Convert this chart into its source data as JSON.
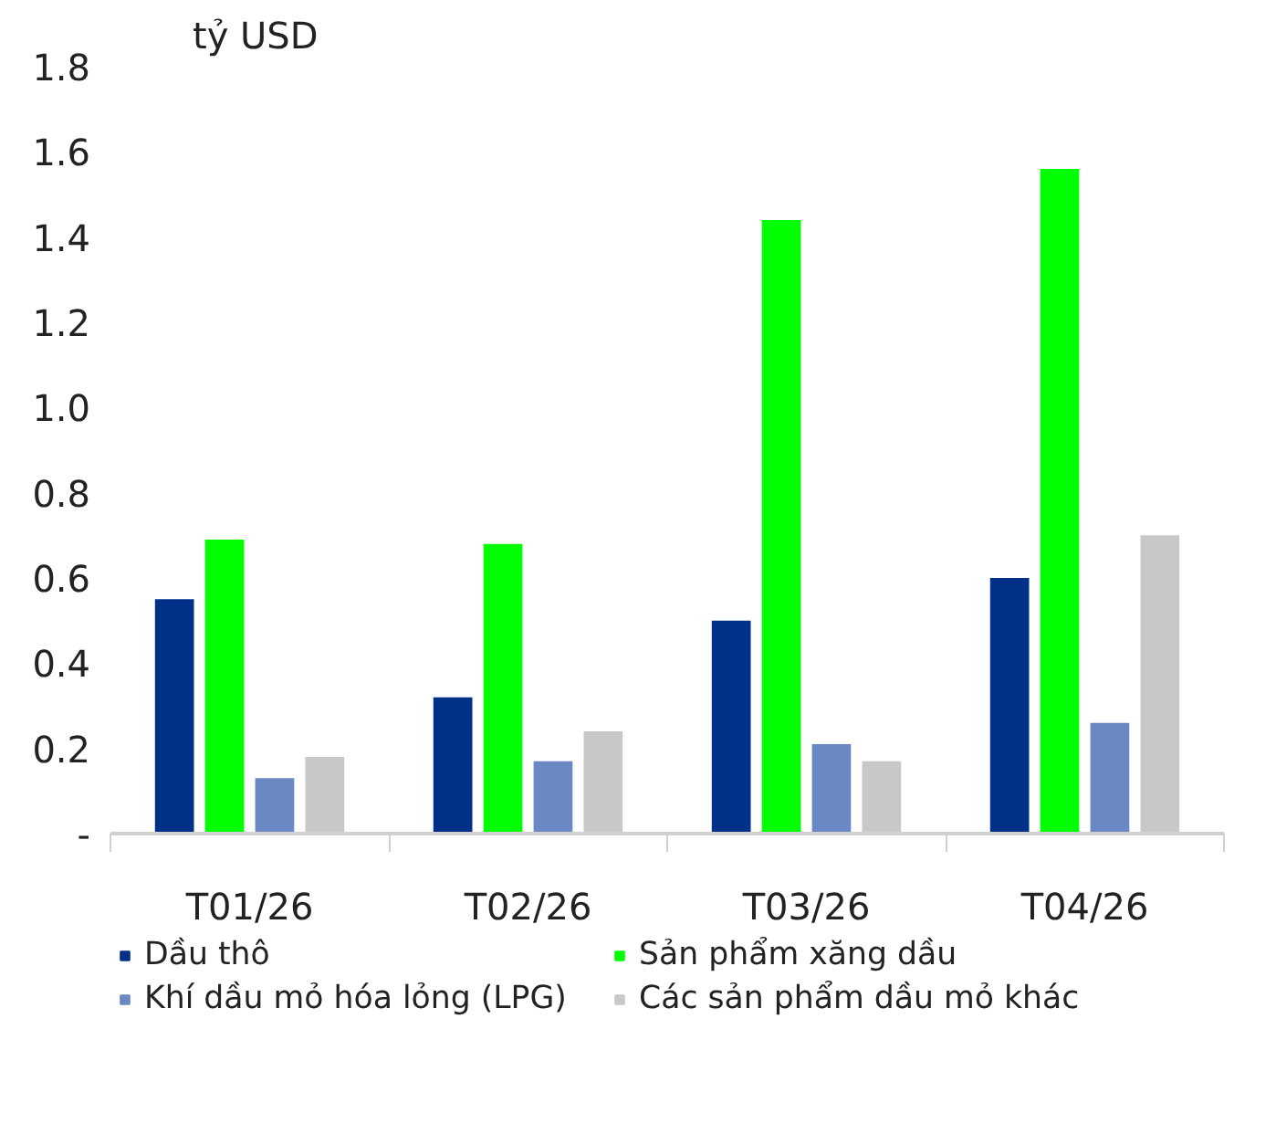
{
  "chart_data": {
    "type": "bar",
    "ylabel": "tỷ USD",
    "categories": [
      "T01/26",
      "T02/26",
      "T03/26",
      "T04/26"
    ],
    "series": [
      {
        "name": "Dầu thô",
        "color": "#003087",
        "values": [
          0.55,
          0.32,
          0.5,
          0.6
        ]
      },
      {
        "name": "Sản phẩm xăng dầu",
        "color": "#00ff00",
        "values": [
          0.69,
          0.68,
          1.44,
          1.56
        ]
      },
      {
        "name": "Khí dầu mỏ hóa lỏng (LPG)",
        "color": "#6a88c4",
        "values": [
          0.13,
          0.17,
          0.21,
          0.26
        ]
      },
      {
        "name": "Các sản phẩm dầu mỏ khác",
        "color": "#c8c8c8",
        "values": [
          0.18,
          0.24,
          0.17,
          0.7
        ]
      }
    ],
    "ylim": [
      0,
      1.8
    ],
    "yticks": [
      {
        "value": 0,
        "label": "-"
      },
      {
        "value": 0.2,
        "label": "0.2"
      },
      {
        "value": 0.4,
        "label": "0.4"
      },
      {
        "value": 0.6,
        "label": "0.6"
      },
      {
        "value": 0.8,
        "label": "0.8"
      },
      {
        "value": 1.0,
        "label": "1.0"
      },
      {
        "value": 1.2,
        "label": "1.2"
      },
      {
        "value": 1.4,
        "label": "1.4"
      },
      {
        "value": 1.6,
        "label": "1.6"
      },
      {
        "value": 1.8,
        "label": "1.8"
      }
    ],
    "grid": false,
    "legend": "bottom"
  }
}
